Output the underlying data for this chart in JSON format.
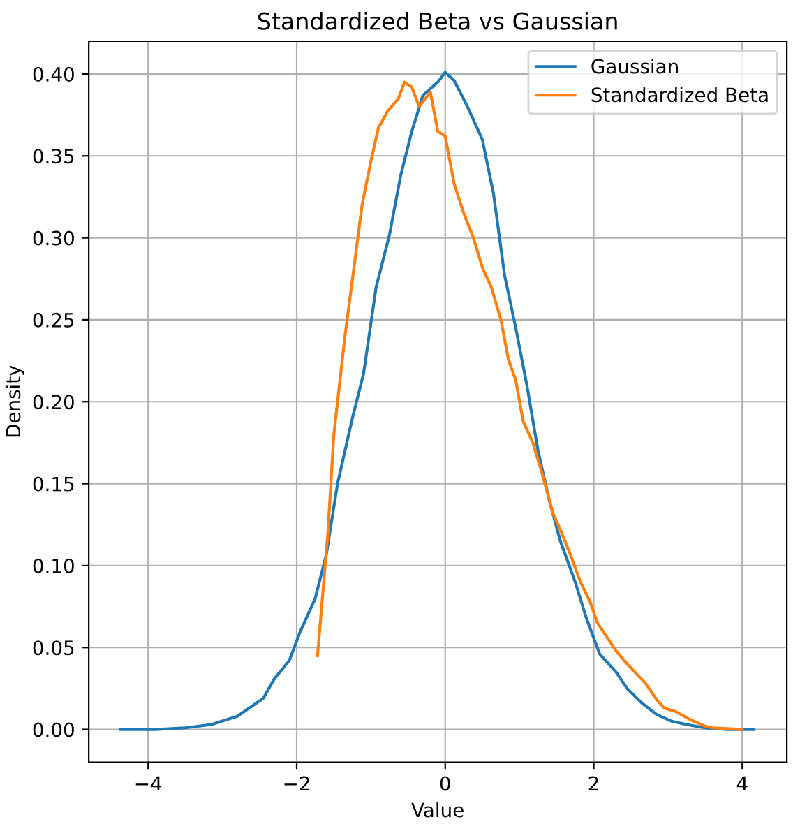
{
  "chart_data": {
    "type": "line",
    "title": "Standardized Beta vs Gaussian",
    "xlabel": "Value",
    "ylabel": "Density",
    "series": [
      {
        "name": "Gaussian",
        "color": "#1f77b4",
        "x": [
          -4.37,
          -3.9,
          -3.5,
          -3.15,
          -2.8,
          -2.45,
          -2.3,
          -2.1,
          -1.95,
          -1.75,
          -1.6,
          -1.45,
          -1.25,
          -1.1,
          -0.93,
          -0.75,
          -0.6,
          -0.45,
          -0.3,
          -0.1,
          0,
          0.12,
          0.3,
          0.5,
          0.65,
          0.8,
          0.95,
          1.1,
          1.25,
          1.4,
          1.55,
          1.75,
          1.9,
          2.08,
          2.3,
          2.45,
          2.65,
          2.85,
          3.05,
          3.25,
          3.5,
          3.8,
          4.15
        ],
        "values": [
          0.0,
          0.0,
          0.001,
          0.003,
          0.008,
          0.019,
          0.031,
          0.042,
          0.06,
          0.08,
          0.107,
          0.15,
          0.19,
          0.217,
          0.27,
          0.302,
          0.338,
          0.365,
          0.387,
          0.395,
          0.401,
          0.396,
          0.38,
          0.36,
          0.327,
          0.277,
          0.245,
          0.21,
          0.17,
          0.14,
          0.115,
          0.09,
          0.068,
          0.046,
          0.035,
          0.025,
          0.016,
          0.009,
          0.005,
          0.003,
          0.001,
          0.0,
          0.0
        ]
      },
      {
        "name": "Standardized Beta",
        "color": "#ff7f0e",
        "x": [
          -1.72,
          -1.58,
          -1.5,
          -1.35,
          -1.22,
          -1.12,
          -1.0,
          -0.9,
          -0.78,
          -0.63,
          -0.55,
          -0.45,
          -0.35,
          -0.2,
          -0.1,
          0.0,
          0.12,
          0.25,
          0.38,
          0.5,
          0.62,
          0.75,
          0.85,
          0.95,
          1.05,
          1.18,
          1.3,
          1.45,
          1.55,
          1.7,
          1.82,
          1.95,
          2.05,
          2.3,
          2.45,
          2.7,
          2.85,
          2.95,
          3.1,
          3.3,
          3.5,
          3.6,
          4.0
        ],
        "values": [
          0.045,
          0.12,
          0.18,
          0.24,
          0.285,
          0.32,
          0.347,
          0.367,
          0.377,
          0.385,
          0.395,
          0.392,
          0.38,
          0.389,
          0.365,
          0.362,
          0.333,
          0.315,
          0.3,
          0.282,
          0.27,
          0.25,
          0.226,
          0.213,
          0.188,
          0.175,
          0.157,
          0.132,
          0.122,
          0.105,
          0.09,
          0.078,
          0.065,
          0.048,
          0.04,
          0.028,
          0.018,
          0.013,
          0.011,
          0.006,
          0.002,
          0.001,
          0.0
        ]
      }
    ],
    "xlim": [
      -4.8,
      4.6
    ],
    "xticks": [
      {
        "value": -4,
        "label": "−4"
      },
      {
        "value": -2,
        "label": "−2"
      },
      0,
      2,
      4
    ],
    "ylim": [
      -0.02,
      0.42
    ],
    "yticks": [
      {
        "value": 0.0,
        "label": "0.00"
      },
      {
        "value": 0.05,
        "label": "0.05"
      },
      {
        "value": 0.1,
        "label": "0.10"
      },
      {
        "value": 0.15,
        "label": "0.15"
      },
      {
        "value": 0.2,
        "label": "0.20"
      },
      {
        "value": 0.25,
        "label": "0.25"
      },
      {
        "value": 0.3,
        "label": "0.30"
      },
      {
        "value": 0.35,
        "label": "0.35"
      },
      {
        "value": 0.4,
        "label": "0.40"
      }
    ],
    "grid": true,
    "legend": "top right"
  }
}
